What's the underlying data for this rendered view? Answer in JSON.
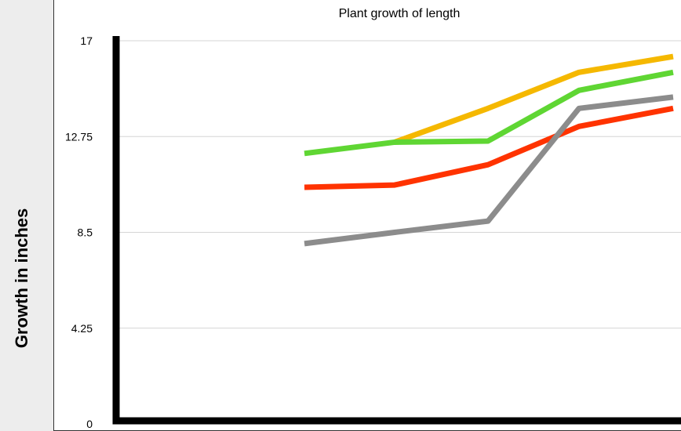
{
  "chart_data": {
    "type": "line",
    "title": "Plant growth of length",
    "xlabel": "",
    "ylabel": "Growth in inches",
    "ylim": [
      0,
      17
    ],
    "y_ticks": [
      "0",
      "4.25",
      "8.5",
      "12.75",
      "17"
    ],
    "x": [
      1,
      2,
      3,
      4,
      5
    ],
    "grid": true,
    "series": [
      {
        "color": "#f5b800",
        "values": [
          null,
          12.5,
          14.0,
          15.6,
          16.3
        ]
      },
      {
        "color": "#5fd633",
        "values": [
          12.0,
          12.5,
          12.55,
          14.8,
          15.6
        ]
      },
      {
        "color": "#ff3300",
        "values": [
          10.5,
          10.6,
          11.5,
          13.2,
          14.0
        ]
      },
      {
        "color": "#8c8c8c",
        "values": [
          8.0,
          8.5,
          9.0,
          14.0,
          14.5
        ]
      }
    ]
  }
}
